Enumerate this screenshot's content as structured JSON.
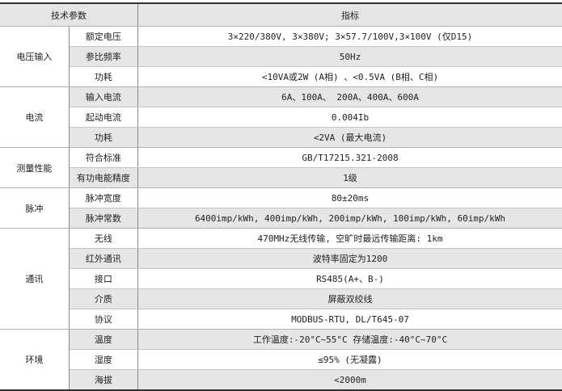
{
  "header": {
    "param": "技术参数",
    "value": "指标"
  },
  "groups": [
    {
      "name": "电压输入",
      "rows": [
        {
          "param": "额定电压",
          "value": "3×220/380V, 3×380V; 3×57.7/100V,3×100V (仅D15)"
        },
        {
          "param": "参比频率",
          "value": "50Hz"
        },
        {
          "param": "功耗",
          "value": "<10VA或2W (A相) 、<0.5VA (B相、C相)"
        }
      ]
    },
    {
      "name": "电流",
      "rows": [
        {
          "param": "输入电流",
          "value": "6A、100A、 200A、400A、600A"
        },
        {
          "param": "起动电流",
          "value": "0.004Ib"
        },
        {
          "param": "功耗",
          "value": "<2VA (最大电流)"
        }
      ]
    },
    {
      "name": "测量性能",
      "rows": [
        {
          "param": "符合标准",
          "value": "GB/T17215.321-2008"
        },
        {
          "param": "有功电能精度",
          "value": "1级"
        }
      ]
    },
    {
      "name": "脉冲",
      "rows": [
        {
          "param": "脉冲宽度",
          "value": "80±20ms"
        },
        {
          "param": "脉冲常数",
          "value": "6400imp/kWh, 400imp/kWh, 200imp/kWh, 100imp/kWh, 60imp/kWh"
        }
      ]
    },
    {
      "name": "通讯",
      "rows": [
        {
          "param": "无线",
          "value": "470MHz无线传输, 空旷时最远传输距离: 1km"
        },
        {
          "param": "红外通讯",
          "value": "波特率固定为1200"
        },
        {
          "param": "接口",
          "value": "RS485(A+、B-)"
        },
        {
          "param": "介质",
          "value": "屏蔽双绞线"
        },
        {
          "param": "协议",
          "value": "MODBUS-RTU, DL/T645-07"
        }
      ]
    },
    {
      "name": "环境",
      "rows": [
        {
          "param": "温度",
          "value": "工作温度:-20°C~55°C    存储温度:-40°C~70°C"
        },
        {
          "param": "湿度",
          "value": "≤95% (无凝露)"
        },
        {
          "param": "海拔",
          "value": "<2000m"
        }
      ]
    }
  ]
}
